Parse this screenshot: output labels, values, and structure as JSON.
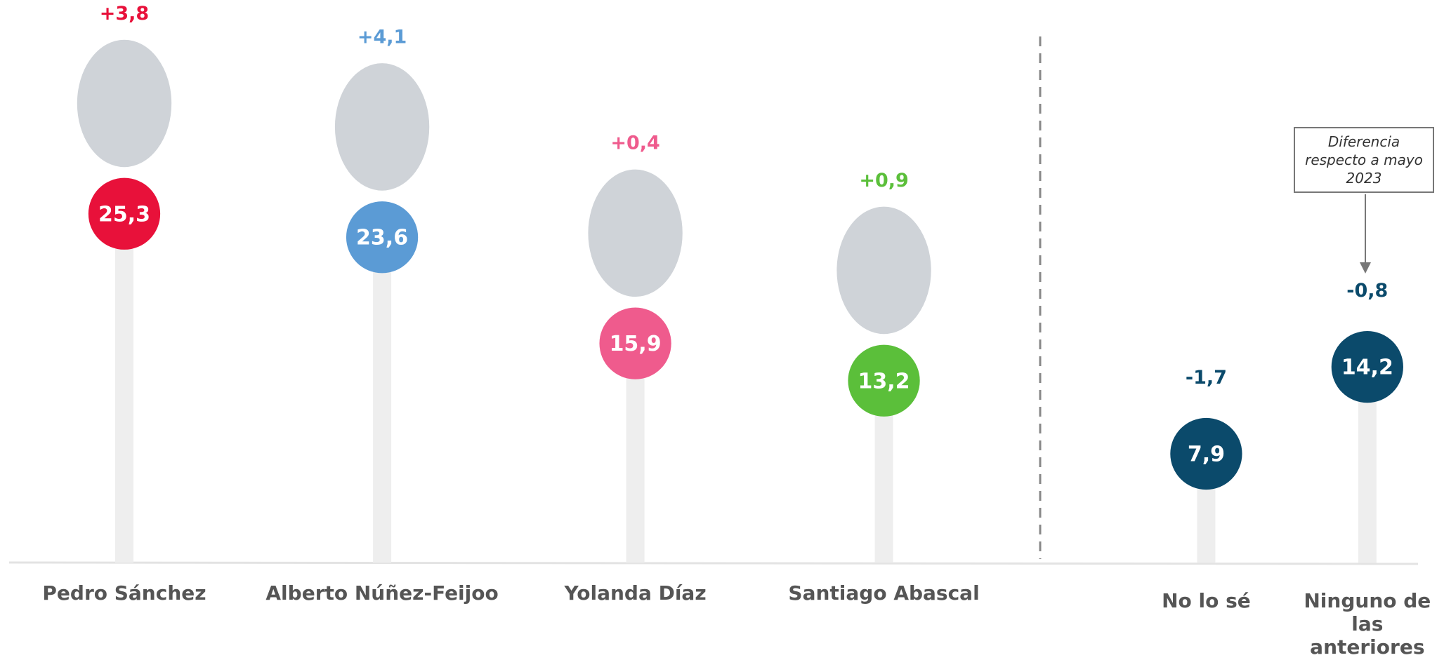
{
  "chart_data": {
    "type": "lollipop",
    "categories": [
      "Pedro Sánchez",
      "Alberto Núñez-Feijoo",
      "Yolanda Díaz",
      "Santiago Abascal",
      "No lo sé",
      "Ninguno de las anteriores"
    ],
    "values": [
      25.3,
      23.6,
      15.9,
      13.2,
      7.9,
      14.2
    ],
    "value_labels": [
      "25,3",
      "23,6",
      "15,9",
      "13,2",
      "7,9",
      "14,2"
    ],
    "changes": [
      3.8,
      4.1,
      0.4,
      0.9,
      -1.7,
      -0.8
    ],
    "change_labels": [
      "+3,8",
      "+4,1",
      "+0,4",
      "+0,9",
      "-1,7",
      "-0,8"
    ],
    "colors": [
      "#e8113a",
      "#5b9bd5",
      "#ef5b8d",
      "#5bbf3a",
      "#0b4a6b",
      "#0b4a6b"
    ],
    "ylim": [
      0,
      40
    ],
    "annotation": "Diferencia respecto a mayo 2023"
  }
}
